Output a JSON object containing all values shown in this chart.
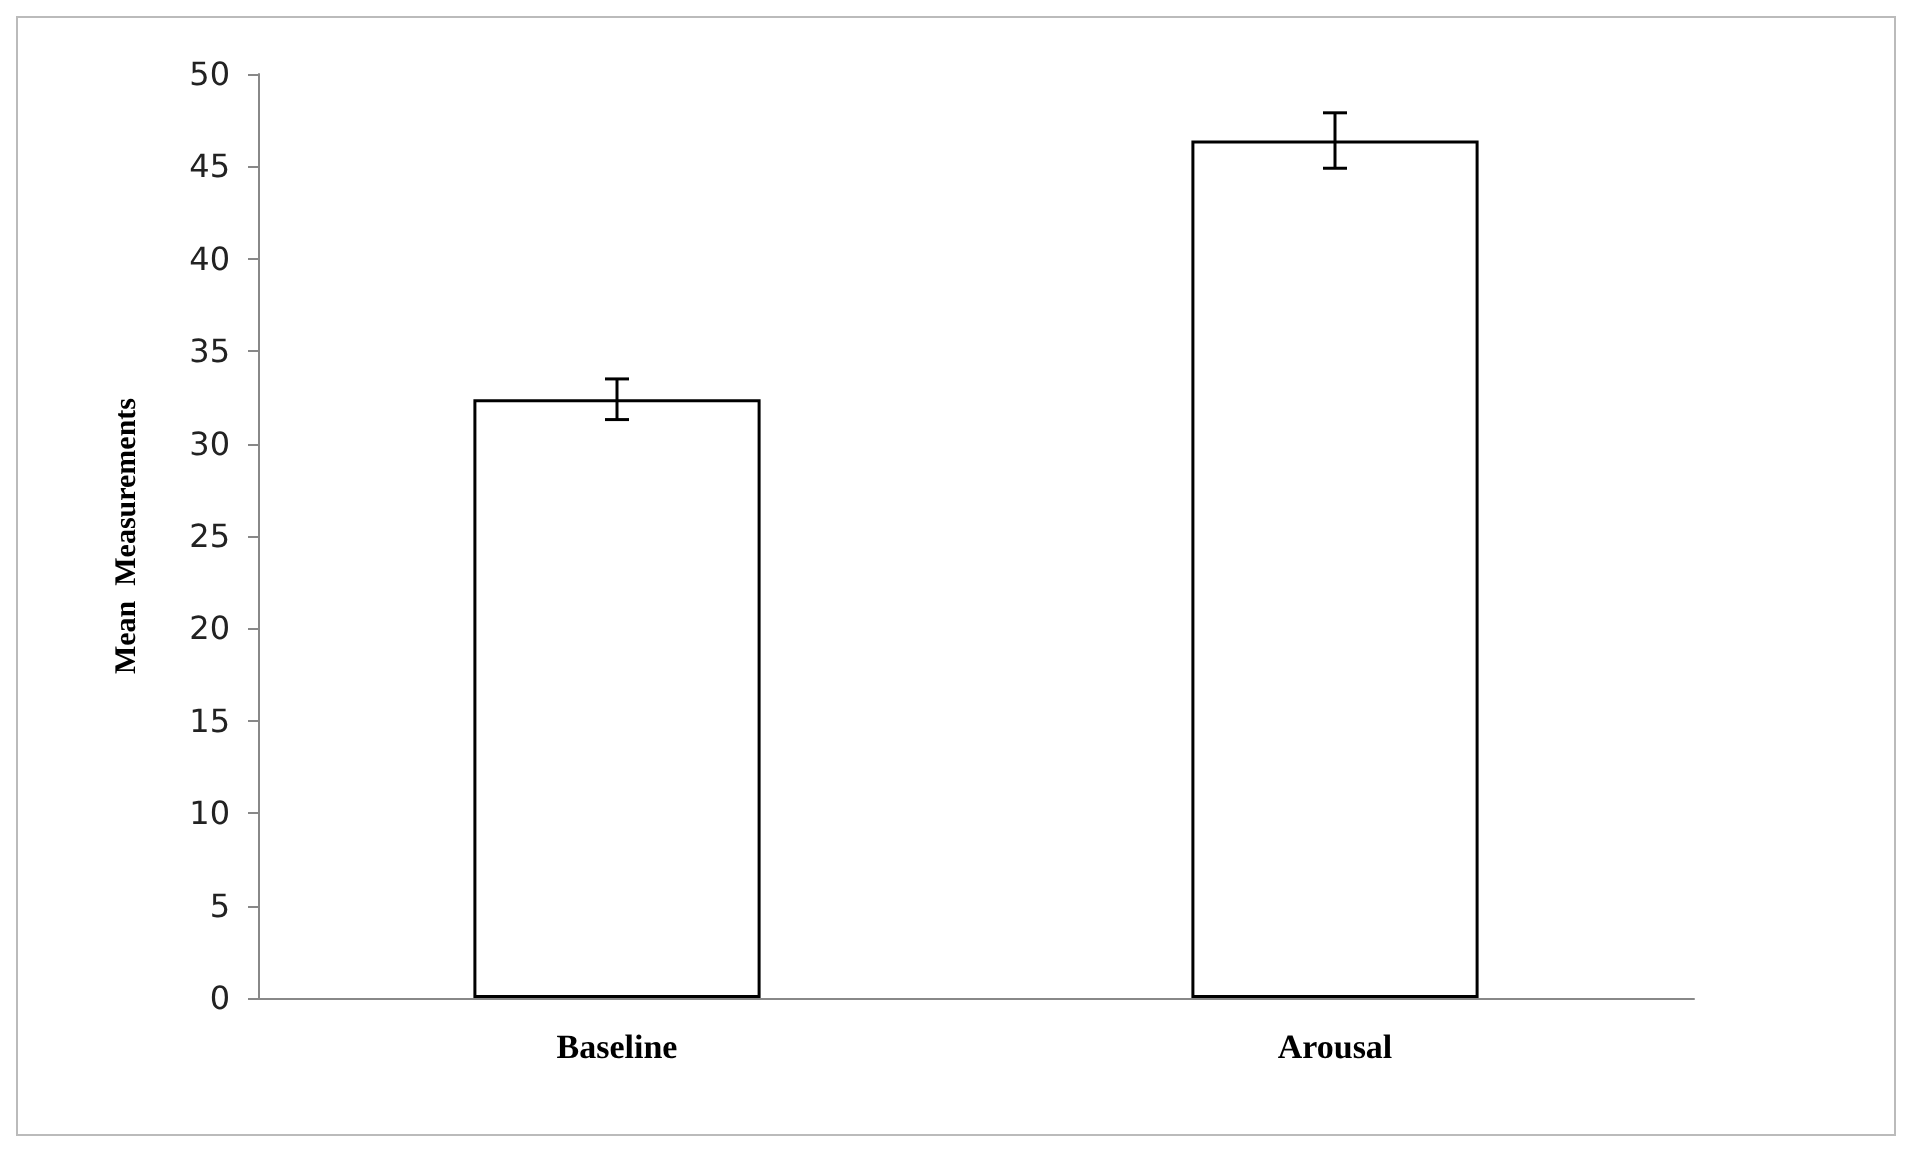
{
  "chart_data": {
    "type": "bar",
    "ylabel": "Mean  Measurements",
    "categories": [
      "Baseline",
      "Arousal"
    ],
    "series": [
      {
        "color": "#ffffff",
        "values": [
          32.4,
          46.4
        ],
        "errors": [
          1.1,
          1.5
        ]
      }
    ],
    "ylim": [
      0,
      50
    ],
    "yticks": [
      0,
      5,
      10,
      15,
      20,
      25,
      30,
      35,
      40,
      45,
      50
    ],
    "grid": false
  }
}
